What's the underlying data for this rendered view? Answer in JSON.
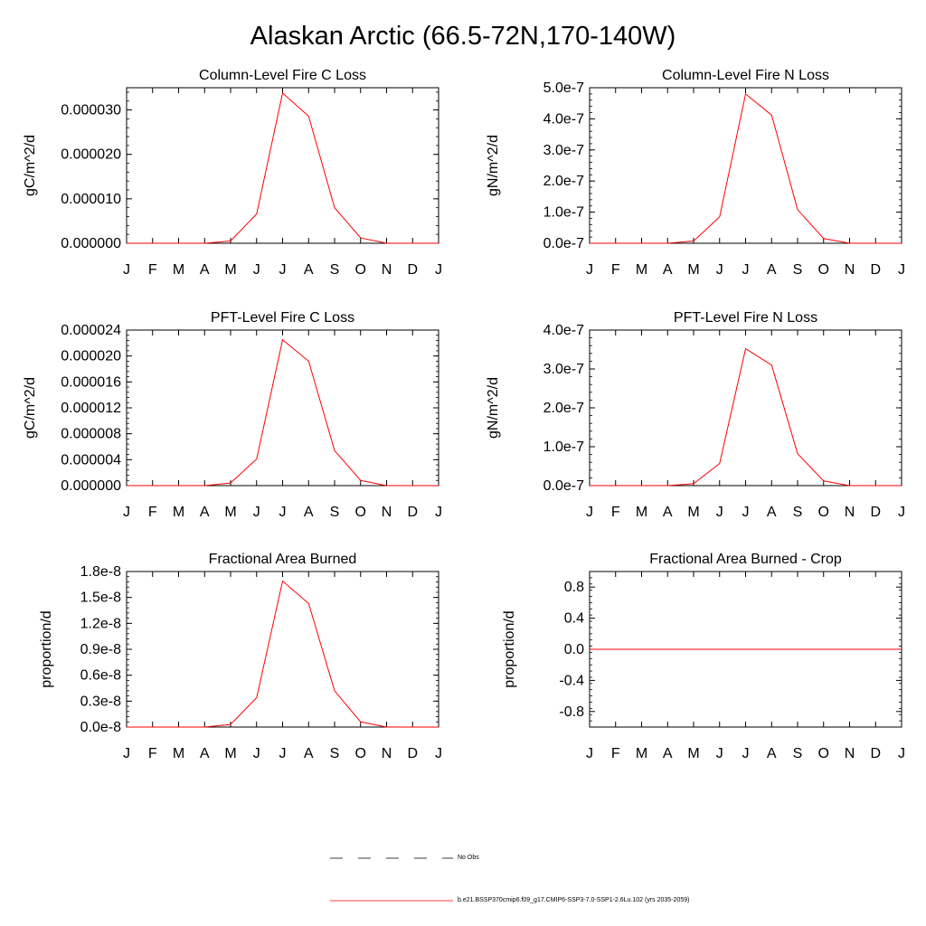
{
  "title": "Alaskan Arctic (66.5-72N,170-140W)",
  "legend": [
    {
      "label": "No Obs",
      "style": "dashed",
      "color": "#000000"
    },
    {
      "label": "b.e21.BSSP370cmip6.f09_g17.CMIP6-SSP3-7.0-SSP1-2.6Lu.102 (yrs 2035-2059)",
      "style": "solid",
      "color": "#ff0000"
    }
  ],
  "chart_data": [
    {
      "type": "line",
      "title": "Column-Level Fire C Loss",
      "ylabel": "gC/m^2/d",
      "categories": [
        "J",
        "F",
        "M",
        "A",
        "M",
        "J",
        "J",
        "A",
        "S",
        "O",
        "N",
        "D",
        "J"
      ],
      "ylim": [
        0,
        3.5e-05
      ],
      "yticks": [
        0.0,
        1e-05,
        2e-05,
        3e-05
      ],
      "ytick_labels": [
        "0.000000",
        "0.000010",
        "0.000020",
        "0.000030"
      ],
      "series": [
        {
          "values": [
            0,
            0,
            0,
            0,
            5e-07,
            6.6e-06,
            3.38e-05,
            2.86e-05,
            8e-06,
            1.2e-06,
            0,
            0,
            0
          ],
          "color": "#ff0000"
        }
      ]
    },
    {
      "type": "line",
      "title": "Column-Level Fire N Loss",
      "ylabel": "gN/m^2/d",
      "categories": [
        "J",
        "F",
        "M",
        "A",
        "M",
        "J",
        "J",
        "A",
        "S",
        "O",
        "N",
        "D",
        "J"
      ],
      "ylim": [
        0,
        5e-07
      ],
      "yticks": [
        0,
        1e-07,
        2e-07,
        3e-07,
        4e-07,
        5e-07
      ],
      "ytick_labels": [
        "0.0e-7",
        "1.0e-7",
        "2.0e-7",
        "3.0e-7",
        "4.0e-7",
        "5.0e-7"
      ],
      "series": [
        {
          "values": [
            0,
            0,
            0,
            0,
            7e-09,
            8.5e-08,
            4.8e-07,
            4.12e-07,
            1.08e-07,
            1.5e-08,
            0,
            0,
            0
          ],
          "color": "#ff0000"
        }
      ]
    },
    {
      "type": "line",
      "title": "PFT-Level Fire C Loss",
      "ylabel": "gC/m^2/d",
      "categories": [
        "J",
        "F",
        "M",
        "A",
        "M",
        "J",
        "J",
        "A",
        "S",
        "O",
        "N",
        "D",
        "J"
      ],
      "ylim": [
        0,
        2.4e-05
      ],
      "yticks": [
        0,
        4e-06,
        8e-06,
        1.2e-05,
        1.6e-05,
        2e-05,
        2.4e-05
      ],
      "ytick_labels": [
        "0.000000",
        "0.000004",
        "0.000008",
        "0.000012",
        "0.000016",
        "0.000020",
        "0.000024"
      ],
      "series": [
        {
          "values": [
            0,
            0,
            0,
            0,
            4e-07,
            4.1e-06,
            2.25e-05,
            1.92e-05,
            5.4e-06,
            8e-07,
            0,
            0,
            0
          ],
          "color": "#ff0000"
        }
      ]
    },
    {
      "type": "line",
      "title": "PFT-Level Fire N Loss",
      "ylabel": "gN/m^2/d",
      "categories": [
        "J",
        "F",
        "M",
        "A",
        "M",
        "J",
        "J",
        "A",
        "S",
        "O",
        "N",
        "D",
        "J"
      ],
      "ylim": [
        0,
        4e-07
      ],
      "yticks": [
        0,
        1e-07,
        2e-07,
        3e-07,
        4e-07
      ],
      "ytick_labels": [
        "0.0e-7",
        "1.0e-7",
        "2.0e-7",
        "3.0e-7",
        "4.0e-7"
      ],
      "series": [
        {
          "values": [
            0,
            0,
            0,
            0,
            5e-09,
            5.7e-08,
            3.52e-07,
            3.1e-07,
            8.2e-08,
            1.2e-08,
            0,
            0,
            0
          ],
          "color": "#ff0000"
        }
      ]
    },
    {
      "type": "line",
      "title": "Fractional Area Burned",
      "ylabel": "proportion/d",
      "categories": [
        "J",
        "F",
        "M",
        "A",
        "M",
        "J",
        "J",
        "A",
        "S",
        "O",
        "N",
        "D",
        "J"
      ],
      "ylim": [
        0,
        1.8e-08
      ],
      "yticks": [
        0,
        3e-09,
        6e-09,
        9e-09,
        1.2e-08,
        1.5e-08,
        1.8e-08
      ],
      "ytick_labels": [
        "0.0e-8",
        "0.3e-8",
        "0.6e-8",
        "0.9e-8",
        "1.2e-8",
        "1.5e-8",
        "1.8e-8"
      ],
      "series": [
        {
          "values": [
            0,
            0,
            0,
            0,
            3e-10,
            3.4e-09,
            1.69e-08,
            1.43e-08,
            4.2e-09,
            6e-10,
            0,
            0,
            0
          ],
          "color": "#ff0000"
        }
      ]
    },
    {
      "type": "line",
      "title": "Fractional Area Burned - Crop",
      "ylabel": "proportion/d",
      "categories": [
        "J",
        "F",
        "M",
        "A",
        "M",
        "J",
        "J",
        "A",
        "S",
        "O",
        "N",
        "D",
        "J"
      ],
      "ylim": [
        -1,
        1
      ],
      "yticks": [
        -0.8,
        -0.4,
        0.0,
        0.4,
        0.8
      ],
      "ytick_labels": [
        "-0.8",
        "-0.4",
        "0.0",
        "0.4",
        "0.8"
      ],
      "series": [
        {
          "values": [
            0,
            0,
            0,
            0,
            0,
            0,
            0,
            0,
            0,
            0,
            0,
            0,
            0
          ],
          "color": "#ff0000"
        }
      ]
    }
  ]
}
